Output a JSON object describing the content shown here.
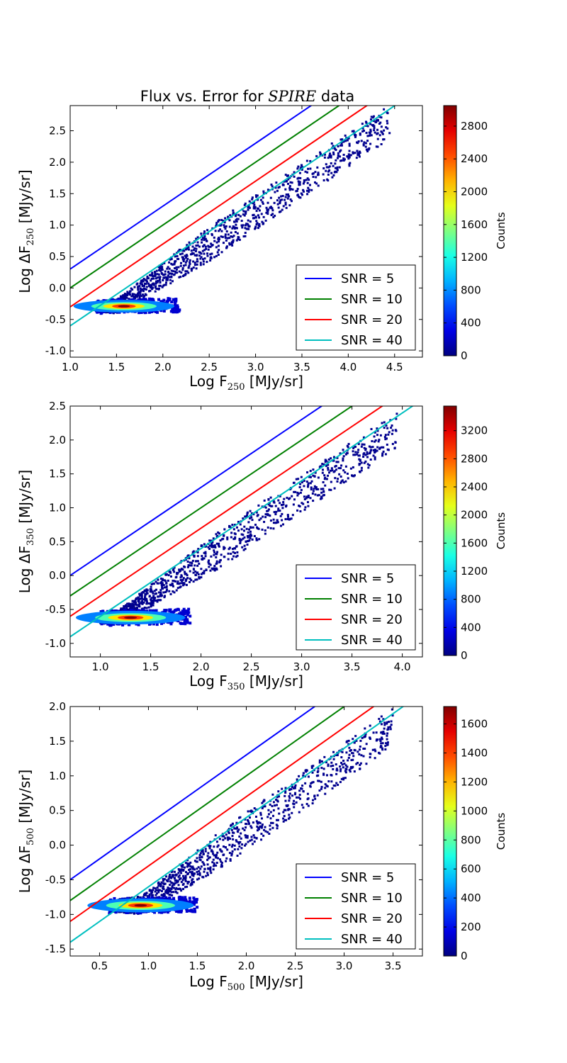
{
  "figure": {
    "title_prefix": "Flux vs. Error for ",
    "title_italic": "SPIRE",
    "title_suffix": " data"
  },
  "chart_data": [
    {
      "type": "heatmap",
      "band": "250",
      "xlabel": {
        "pre": "Log F",
        "sub": "250",
        "post": " [MJy/sr]"
      },
      "ylabel": {
        "pre": "Log ΔF",
        "sub": "250",
        "post": " [MJy/sr]"
      },
      "xlim": [
        1.0,
        4.8
      ],
      "ylim": [
        -1.1,
        2.9
      ],
      "xticks": [
        "1.0",
        "1.5",
        "2.0",
        "2.5",
        "3.0",
        "3.5",
        "4.0",
        "4.5"
      ],
      "yticks": [
        "-1.0",
        "-0.5",
        "0.0",
        "0.5",
        "1.0",
        "1.5",
        "2.0",
        "2.5"
      ],
      "colorbar": {
        "label": "Counts",
        "max": 3050,
        "ticks": [
          "0",
          "400",
          "800",
          "1200",
          "1600",
          "2000",
          "2400",
          "2800"
        ]
      },
      "peak": {
        "x": 1.58,
        "y": -0.29
      },
      "distribution": {
        "x_min": 1.28,
        "x_max": 4.45,
        "baseline_offset": -1.9
      },
      "snr_lines": [
        {
          "name": "SNR = 5",
          "snr": 5,
          "color": "#0000ff"
        },
        {
          "name": "SNR = 10",
          "snr": 10,
          "color": "#008000"
        },
        {
          "name": "SNR = 20",
          "snr": 20,
          "color": "#ff0000"
        },
        {
          "name": "SNR = 40",
          "snr": 40,
          "color": "#00bfbf"
        }
      ],
      "legend_position": "lower-right"
    },
    {
      "type": "heatmap",
      "band": "350",
      "xlabel": {
        "pre": "Log F",
        "sub": "350",
        "post": " [MJy/sr]"
      },
      "ylabel": {
        "pre": "Log ΔF",
        "sub": "350",
        "post": " [MJy/sr]"
      },
      "xlim": [
        0.7,
        4.2
      ],
      "ylim": [
        -1.2,
        2.5
      ],
      "xticks": [
        "1.0",
        "1.5",
        "2.0",
        "2.5",
        "3.0",
        "3.5",
        "4.0"
      ],
      "yticks": [
        "-1.0",
        "-0.5",
        "0.0",
        "0.5",
        "1.0",
        "1.5",
        "2.0",
        "2.5"
      ],
      "colorbar": {
        "label": "Counts",
        "max": 3550,
        "ticks": [
          "0",
          "400",
          "800",
          "1200",
          "1600",
          "2000",
          "2400",
          "2800",
          "3200"
        ]
      },
      "peak": {
        "x": 1.3,
        "y": -0.62
      },
      "distribution": {
        "x_min": 1.0,
        "x_max": 3.95,
        "baseline_offset": -1.9
      },
      "snr_lines": [
        {
          "name": "SNR = 5",
          "snr": 5,
          "color": "#0000ff"
        },
        {
          "name": "SNR = 10",
          "snr": 10,
          "color": "#008000"
        },
        {
          "name": "SNR = 20",
          "snr": 20,
          "color": "#ff0000"
        },
        {
          "name": "SNR = 40",
          "snr": 40,
          "color": "#00bfbf"
        }
      ],
      "legend_position": "lower-right"
    },
    {
      "type": "heatmap",
      "band": "500",
      "xlabel": {
        "pre": "Log F",
        "sub": "500",
        "post": " [MJy/sr]"
      },
      "ylabel": {
        "pre": "Log ΔF",
        "sub": "500",
        "post": " [MJy/sr]"
      },
      "xlim": [
        0.2,
        3.8
      ],
      "ylim": [
        -1.6,
        2.0
      ],
      "xticks": [
        "0.5",
        "1.0",
        "1.5",
        "2.0",
        "2.5",
        "3.0",
        "3.5"
      ],
      "yticks": [
        "-1.5",
        "-1.0",
        "-0.5",
        "0.0",
        "0.5",
        "1.0",
        "1.5",
        "2.0"
      ],
      "colorbar": {
        "label": "Counts",
        "max": 1720,
        "ticks": [
          "0",
          "200",
          "400",
          "600",
          "800",
          "1000",
          "1200",
          "1400",
          "1600"
        ]
      },
      "peak": {
        "x": 0.92,
        "y": -0.87
      },
      "distribution": {
        "x_min": 0.6,
        "x_max": 3.5,
        "baseline_offset": -1.9
      },
      "snr_lines": [
        {
          "name": "SNR = 5",
          "snr": 5,
          "color": "#0000ff"
        },
        {
          "name": "SNR = 10",
          "snr": 10,
          "color": "#008000"
        },
        {
          "name": "SNR = 20",
          "snr": 20,
          "color": "#ff0000"
        },
        {
          "name": "SNR = 40",
          "snr": 40,
          "color": "#00bfbf"
        }
      ],
      "legend_position": "lower-right"
    }
  ]
}
